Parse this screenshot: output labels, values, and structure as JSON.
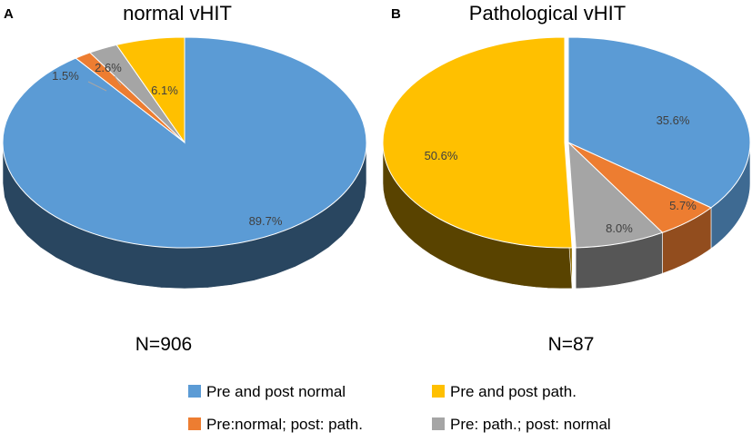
{
  "chart_data": [
    {
      "type": "pie",
      "panel": "A",
      "title": "normal vHIT",
      "n_label": "N=906",
      "categories": [
        "Pre and post normal",
        "Pre:normal; post: path.",
        "Pre: path.; post: normal",
        "Pre and post path."
      ],
      "values": [
        89.7,
        1.5,
        2.6,
        6.1
      ],
      "labels": [
        "89.7%",
        "1.5%",
        "2.6%",
        "6.1%"
      ]
    },
    {
      "type": "pie",
      "panel": "B",
      "title": "Pathological vHIT",
      "n_label": "N=87",
      "categories": [
        "Pre and post normal",
        "Pre:normal; post: path.",
        "Pre: path.; post: normal",
        "Pre and post path."
      ],
      "values": [
        35.6,
        5.7,
        8.0,
        50.6
      ],
      "labels": [
        "35.6%",
        "5.7%",
        "8.0%",
        "50.6%"
      ]
    }
  ],
  "legend": [
    {
      "label": "Pre and post normal",
      "color": "#5B9BD5"
    },
    {
      "label": "Pre and post path.",
      "color": "#FFC000"
    },
    {
      "label": "Pre:normal; post: path.",
      "color": "#ED7D31"
    },
    {
      "label": "Pre: path.; post: normal",
      "color": "#A5A5A5"
    }
  ],
  "colors": {
    "Pre and post normal": "#5B9BD5",
    "Pre:normal; post: path.": "#ED7D31",
    "Pre: path.; post: normal": "#A5A5A5",
    "Pre and post path.": "#FFC000"
  }
}
